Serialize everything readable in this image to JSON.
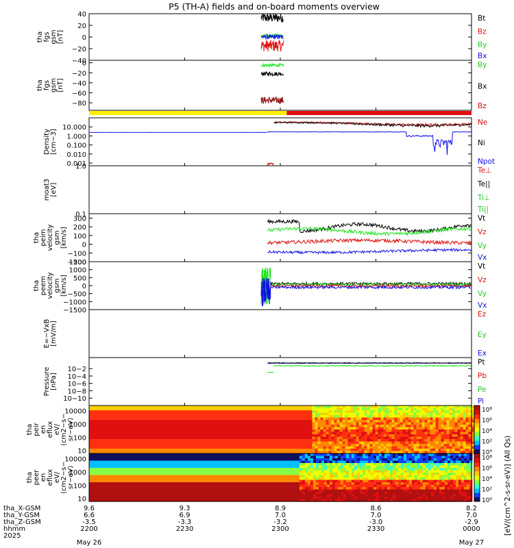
{
  "title": "P5 (TH-A) fields and on-board moments overview",
  "colors": {
    "black": "#000000",
    "red": "#e01010",
    "green": "#19e619",
    "blue": "#1010e6",
    "yellow": "#ffee00",
    "bar_red": "#e01010"
  },
  "chart_data": {
    "type": "line",
    "time_axis": {
      "range": [
        "2200",
        "0000"
      ],
      "ticks": [
        {
          "hhmm": "2200",
          "xgsm": "9.6",
          "ygsm": "6.6",
          "zgsm": "-3.5"
        },
        {
          "hhmm": "2230",
          "xgsm": "9.3",
          "ygsm": "6.9",
          "zgsm": "-3.3"
        },
        {
          "hhmm": "2300",
          "xgsm": "8.9",
          "ygsm": "7.0",
          "zgsm": "-3.2"
        },
        {
          "hhmm": "2330",
          "xgsm": "8.6",
          "ygsm": "7.0",
          "zgsm": "-3.0"
        },
        {
          "hhmm": "0000",
          "xgsm": "8.2",
          "ygsm": "7.0",
          "zgsm": "-2.9"
        }
      ],
      "row_labels": [
        "tha_X-GSM",
        "tha_Y-GSM",
        "tha_Z-GSM",
        "hhmm",
        "2025"
      ],
      "date_start": "May 26",
      "date_end": "May 27"
    },
    "panels": [
      {
        "id": "fgs",
        "ylabel": [
          "tha",
          "fgs",
          "gsm",
          "[nT]"
        ],
        "ylim": [
          -40,
          40
        ],
        "ticks": [
          "40",
          "20",
          "0",
          "−20",
          "−40"
        ],
        "legend": [
          {
            "name": "Bt",
            "color": "#000000"
          },
          {
            "name": "Bz",
            "color": "#e01010"
          },
          {
            "name": "By",
            "color": "#19e619"
          },
          {
            "name": "Bx",
            "color": "#1010e6"
          }
        ],
        "data_window": [
          "2254",
          "2301"
        ]
      },
      {
        "id": "fgs_lower",
        "ylabel": [
          "tha",
          "fgs",
          "gsm",
          "[nT]"
        ],
        "ylim": [
          -95,
          5
        ],
        "ticks": [
          "0",
          "−20",
          "−40",
          "−60",
          "−80"
        ],
        "legend": [
          {
            "name": "By",
            "color": "#19e619"
          },
          {
            "name": "Bx",
            "color": "#000000"
          },
          {
            "name": "Bz",
            "color": "#e01010"
          }
        ],
        "data_window": [
          "2254",
          "2301"
        ]
      },
      {
        "id": "mode_bar",
        "segments": [
          {
            "color": "#ffee00",
            "from": "2200",
            "to": "2302"
          },
          {
            "color": "#e01010",
            "from": "2302",
            "to": "0000"
          }
        ]
      },
      {
        "id": "density",
        "ylabel": [
          "Density",
          "[cm−3]"
        ],
        "scale": "log",
        "ylim": [
          0.0005,
          100
        ],
        "ticks": [
          "10.000",
          "1.000",
          "0.100",
          "0.010",
          "0.001"
        ],
        "legend": [
          {
            "name": "Ne",
            "color": "#e01010"
          },
          {
            "name": "Ni",
            "color": "#000000"
          },
          {
            "name": "Npot",
            "color": "#1010e6"
          }
        ],
        "levels": {
          "ne_before": 0.0007,
          "ne_after": 30,
          "npot": 3
        }
      },
      {
        "id": "temperature",
        "ylabel": [
          "moat3",
          "[eV]"
        ],
        "scale": "log",
        "ylim": [
          0.1,
          1.0
        ],
        "ticks": [
          "1.0",
          "0.1"
        ],
        "legend": [
          {
            "name": "Te⊥",
            "color": "#e01010"
          },
          {
            "name": "Te||",
            "color": "#000000"
          },
          {
            "name": "Ti⊥",
            "color": "#19e619"
          },
          {
            "name": "Ti||",
            "color": "#19e619"
          }
        ]
      },
      {
        "id": "peim_velocity",
        "ylabel": [
          "tha",
          "peim",
          "velocity",
          "gsm",
          "[km/s]"
        ],
        "ylim": [
          -200,
          350
        ],
        "ticks": [
          "300",
          "200",
          "100",
          "0",
          "−100",
          "−200"
        ],
        "legend": [
          {
            "name": "Vt",
            "color": "#000000"
          },
          {
            "name": "Vz",
            "color": "#e01010"
          },
          {
            "name": "Vy",
            "color": "#19e619"
          },
          {
            "name": "Vx",
            "color": "#1010e6"
          }
        ],
        "levels": {
          "Vt": 180,
          "Vy": 160,
          "Vz": 20,
          "Vx": -70
        }
      },
      {
        "id": "peem_velocity",
        "ylabel": [
          "tha",
          "peem",
          "velocity",
          "gsm",
          "[km/s]"
        ],
        "ylim": [
          -1500,
          1500
        ],
        "ticks": [
          "1500",
          "1000",
          "500",
          "0",
          "−500",
          "−1000",
          "−1500"
        ],
        "legend": [
          {
            "name": "Vt",
            "color": "#000000"
          },
          {
            "name": "Vz",
            "color": "#e01010"
          },
          {
            "name": "Vy",
            "color": "#19e619"
          },
          {
            "name": "Vx",
            "color": "#1010e6"
          }
        ]
      },
      {
        "id": "efield",
        "ylabel": [
          "E=−VxB",
          "[mV/m]"
        ],
        "legend": [
          {
            "name": "Ez",
            "color": "#e01010"
          },
          {
            "name": "Ey",
            "color": "#19e619"
          },
          {
            "name": "Ex",
            "color": "#1010e6"
          }
        ]
      },
      {
        "id": "pressure",
        "ylabel": [
          "Pressure",
          "[nPa]"
        ],
        "scale": "log",
        "ylim": [
          1e-12,
          10.0
        ],
        "ticks": [
          "10−2",
          "10−4",
          "10−6",
          "10−8",
          "10−10"
        ],
        "legend": [
          {
            "name": "Pt",
            "color": "#000000"
          },
          {
            "name": "Pb",
            "color": "#e01010"
          },
          {
            "name": "Pe",
            "color": "#19e619"
          },
          {
            "name": "Pi",
            "color": "#1010e6"
          }
        ]
      },
      {
        "id": "peir_spectrogram",
        "type": "heatmap",
        "ylabel": [
          "tha",
          "peir",
          "en",
          "eflux",
          "eV/",
          "(cm2−s−",
          "sr−eV)"
        ],
        "scale": "log",
        "ylim": [
          6,
          25000
        ],
        "ticks": [
          "10000",
          "1000",
          "100",
          "10"
        ]
      },
      {
        "id": "peer_spectrogram",
        "type": "heatmap",
        "ylabel": [
          "tha",
          "peer",
          "en",
          "eflux",
          "eV/",
          "(cm2−s−",
          "sr−eV)"
        ],
        "scale": "log",
        "ylim": [
          6,
          25000
        ],
        "ticks": [
          "10000",
          "1000",
          "100",
          "10"
        ]
      }
    ],
    "colorbar": {
      "label": "[eV/(cm^2-s-sr-eV)] (All Qs)",
      "upper_ticks": [
        "10⁸",
        "10⁶",
        "10⁴",
        "10²",
        "10⁰"
      ],
      "lower_ticks": [
        "10⁸",
        "10⁶",
        "10⁴",
        "10²",
        "10⁰"
      ]
    }
  }
}
